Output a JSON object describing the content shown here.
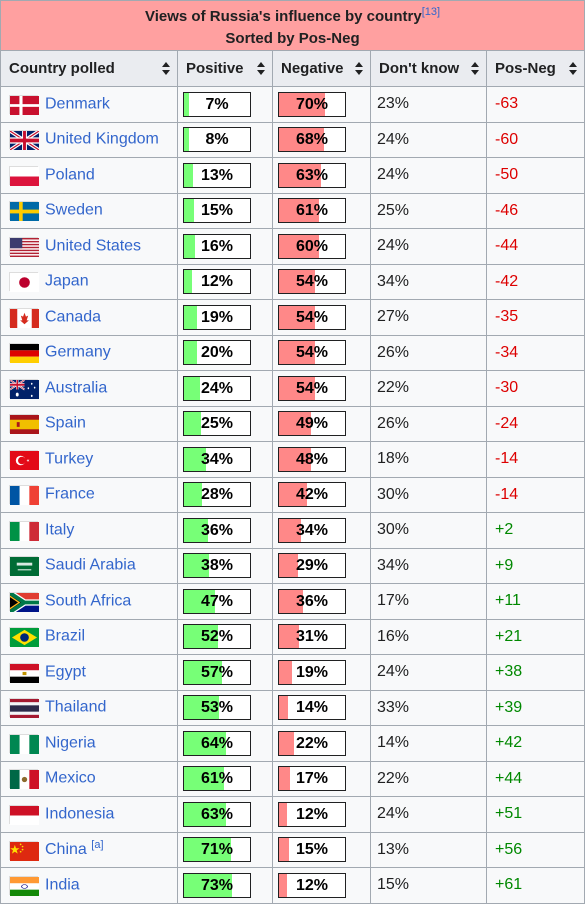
{
  "caption": {
    "title": "Views of Russia's influence by country",
    "ref": "[13]",
    "subtitle": "Sorted by Pos-Neg"
  },
  "headers": {
    "country": "Country polled",
    "positive": "Positive",
    "negative": "Negative",
    "dontknow": "Don't know",
    "posneg": "Pos-Neg"
  },
  "colors": {
    "caption_bg": "#ffa0a0",
    "positive_fill": "#77ff77",
    "negative_fill": "#ff8888",
    "link": "#3366cc",
    "neg_text": "#dd0000",
    "pos_text": "#008800"
  },
  "rows": [
    {
      "country": "Denmark",
      "flag": "denmark-flag-icon",
      "note": "",
      "positive": "7%",
      "negative": "70%",
      "dontknow": "23%",
      "posneg": "-63"
    },
    {
      "country": "United Kingdom",
      "flag": "united-kingdom-flag-icon",
      "note": "",
      "positive": "8%",
      "negative": "68%",
      "dontknow": "24%",
      "posneg": "-60"
    },
    {
      "country": "Poland",
      "flag": "poland-flag-icon",
      "note": "",
      "positive": "13%",
      "negative": "63%",
      "dontknow": "24%",
      "posneg": "-50"
    },
    {
      "country": "Sweden",
      "flag": "sweden-flag-icon",
      "note": "",
      "positive": "15%",
      "negative": "61%",
      "dontknow": "25%",
      "posneg": "-46"
    },
    {
      "country": "United States",
      "flag": "united-states-flag-icon",
      "note": "",
      "positive": "16%",
      "negative": "60%",
      "dontknow": "24%",
      "posneg": "-44"
    },
    {
      "country": "Japan",
      "flag": "japan-flag-icon",
      "note": "",
      "positive": "12%",
      "negative": "54%",
      "dontknow": "34%",
      "posneg": "-42"
    },
    {
      "country": "Canada",
      "flag": "canada-flag-icon",
      "note": "",
      "positive": "19%",
      "negative": "54%",
      "dontknow": "27%",
      "posneg": "-35"
    },
    {
      "country": "Germany",
      "flag": "germany-flag-icon",
      "note": "",
      "positive": "20%",
      "negative": "54%",
      "dontknow": "26%",
      "posneg": "-34"
    },
    {
      "country": "Australia",
      "flag": "australia-flag-icon",
      "note": "",
      "positive": "24%",
      "negative": "54%",
      "dontknow": "22%",
      "posneg": "-30"
    },
    {
      "country": "Spain",
      "flag": "spain-flag-icon",
      "note": "",
      "positive": "25%",
      "negative": "49%",
      "dontknow": "26%",
      "posneg": "-24"
    },
    {
      "country": "Turkey",
      "flag": "turkey-flag-icon",
      "note": "",
      "positive": "34%",
      "negative": "48%",
      "dontknow": "18%",
      "posneg": "-14"
    },
    {
      "country": "France",
      "flag": "france-flag-icon",
      "note": "",
      "positive": "28%",
      "negative": "42%",
      "dontknow": "30%",
      "posneg": "-14"
    },
    {
      "country": "Italy",
      "flag": "italy-flag-icon",
      "note": "",
      "positive": "36%",
      "negative": "34%",
      "dontknow": "30%",
      "posneg": "+2"
    },
    {
      "country": "Saudi Arabia",
      "flag": "saudi-arabia-flag-icon",
      "note": "",
      "positive": "38%",
      "negative": "29%",
      "dontknow": "34%",
      "posneg": "+9"
    },
    {
      "country": "South Africa",
      "flag": "south-africa-flag-icon",
      "note": "",
      "positive": "47%",
      "negative": "36%",
      "dontknow": "17%",
      "posneg": "+11"
    },
    {
      "country": "Brazil",
      "flag": "brazil-flag-icon",
      "note": "",
      "positive": "52%",
      "negative": "31%",
      "dontknow": "16%",
      "posneg": "+21"
    },
    {
      "country": "Egypt",
      "flag": "egypt-flag-icon",
      "note": "",
      "positive": "57%",
      "negative": "19%",
      "dontknow": "24%",
      "posneg": "+38"
    },
    {
      "country": "Thailand",
      "flag": "thailand-flag-icon",
      "note": "",
      "positive": "53%",
      "negative": "14%",
      "dontknow": "33%",
      "posneg": "+39"
    },
    {
      "country": "Nigeria",
      "flag": "nigeria-flag-icon",
      "note": "",
      "positive": "64%",
      "negative": "22%",
      "dontknow": "14%",
      "posneg": "+42"
    },
    {
      "country": "Mexico",
      "flag": "mexico-flag-icon",
      "note": "",
      "positive": "61%",
      "negative": "17%",
      "dontknow": "22%",
      "posneg": "+44"
    },
    {
      "country": "Indonesia",
      "flag": "indonesia-flag-icon",
      "note": "",
      "positive": "63%",
      "negative": "12%",
      "dontknow": "24%",
      "posneg": "+51"
    },
    {
      "country": "China",
      "flag": "china-flag-icon",
      "note": "[a]",
      "positive": "71%",
      "negative": "15%",
      "dontknow": "13%",
      "posneg": "+56"
    },
    {
      "country": "India",
      "flag": "india-flag-icon",
      "note": "",
      "positive": "73%",
      "negative": "12%",
      "dontknow": "15%",
      "posneg": "+61"
    }
  ]
}
